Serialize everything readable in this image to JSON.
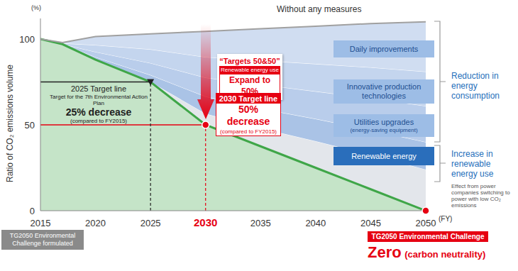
{
  "chart_data": {
    "type": "area",
    "stacked": true,
    "x": [
      2015,
      2017,
      2020,
      2025,
      2030,
      2035,
      2040,
      2045,
      2050
    ],
    "xlim": [
      2015,
      2050
    ],
    "xticks": [
      2015,
      2020,
      2025,
      2030,
      2035,
      2040,
      2045,
      2050
    ],
    "x_unit": "(FY)",
    "ylim": [
      0,
      112
    ],
    "yticks": [
      0,
      50,
      100
    ],
    "y_label": "Ratio of CO₂ emissions volume",
    "y_unit": "(%)",
    "series": [
      {
        "type": "area",
        "color": "#3fa648",
        "values": [
          100,
          97,
          88,
          75,
          50,
          37.5,
          25,
          12.5,
          0
        ]
      },
      {
        "name": "Effect from power companies switching to power with low CO₂ emissions",
        "type": "area",
        "color": "#e3e6eb",
        "values": [
          0,
          0,
          0,
          0,
          6.5,
          10.5,
          15.5,
          20,
          24
        ]
      },
      {
        "name": "Renewable energy",
        "type": "area",
        "color": "#aac3e6",
        "values": [
          0,
          0,
          1.5,
          4,
          10,
          11.5,
          13,
          14.5,
          16
        ]
      },
      {
        "name": "Utilities upgrades",
        "detail": "(energy-saving equipment)",
        "type": "area",
        "color": "#b9cdeb",
        "values": [
          0,
          0,
          3,
          7,
          11,
          14,
          16,
          18.5,
          21
        ]
      },
      {
        "name": "Innovative production technologies",
        "type": "area",
        "color": "#c4d5ee",
        "values": [
          0,
          0.5,
          4,
          8,
          12,
          14,
          16,
          18,
          20
        ]
      },
      {
        "name": "Daily improvements",
        "type": "area",
        "color": "#d0ddf1",
        "values": [
          0,
          0.5,
          5,
          9,
          15,
          18.5,
          22,
          25.5,
          29
        ]
      },
      {
        "name": "Without any measures",
        "type": "line",
        "color": "#a0a0a0",
        "values": [
          100,
          98,
          101.5,
          103,
          104.5,
          106,
          107.5,
          109,
          110
        ]
      }
    ],
    "groups": [
      {
        "label": "Reduction in energy consumption",
        "color": "#1f6fbb"
      },
      {
        "label": "Increase in renewable energy use",
        "color": "#1f6fbb"
      }
    ],
    "annotations": [
      {
        "x": 2025,
        "y": 75,
        "color": "#222222",
        "marker": "triangle",
        "title": "2025 Target line",
        "text": "Target for the 7th Environmental Action Plan",
        "value_text": "25% decrease",
        "sub_text": "(compared to FY2015)"
      },
      {
        "x": 2030,
        "y": 50,
        "color": "#e60012",
        "marker": "circle",
        "title": "2030 Target line",
        "value_text": "50% decrease",
        "sub_text": "(compared to FY2015)"
      },
      {
        "x": 2050,
        "y": 0,
        "color": "#e60012",
        "marker": "circle",
        "title": "TG2050 Environmental Challenge",
        "value_text": "Zero",
        "sub_text": "(carbon neutrality)"
      }
    ],
    "callout": {
      "title": "“Targets 50&50”",
      "label": "Renewable energy use",
      "value_text": "Expand to 50%"
    },
    "footnote": "TG2050 Environmental Challenge formulated"
  }
}
